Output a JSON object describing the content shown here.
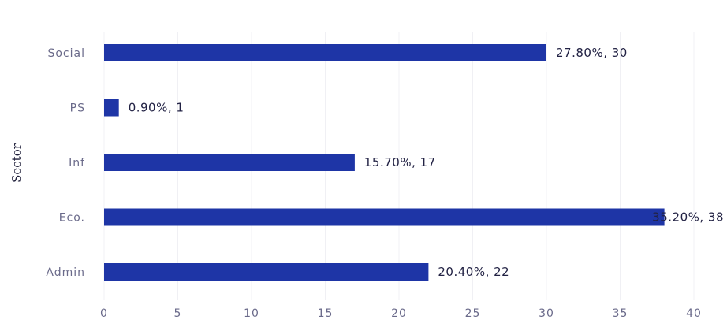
{
  "chart_data": {
    "type": "bar",
    "orientation": "horizontal",
    "title": "",
    "xlabel": "",
    "ylabel": "Sector",
    "categories": [
      "Social",
      "PS",
      "Inf",
      "Eco.",
      "Admin"
    ],
    "values": [
      30,
      1,
      17,
      38,
      22
    ],
    "data_labels": [
      "27.80%, 30",
      "0.90%, 1",
      "15.70%, 17",
      "35.20%, 38",
      "20.40%, 22"
    ],
    "xlim": [
      0,
      40
    ],
    "xticks": [
      0,
      5,
      10,
      15,
      20,
      25,
      30,
      35,
      40
    ],
    "grid": false,
    "legend": "none",
    "colors": {
      "bar": "#1e35a6"
    }
  }
}
